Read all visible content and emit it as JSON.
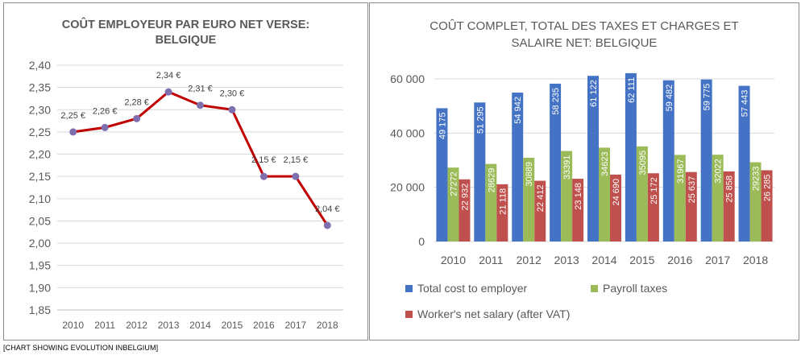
{
  "chart_data": [
    {
      "type": "line",
      "title": "COÛT EMPLOYEUR PAR EURO NET VERSE:\nBELGIQUE",
      "categories": [
        "2010",
        "2011",
        "2012",
        "2013",
        "2014",
        "2015",
        "2016",
        "2017",
        "2018"
      ],
      "values": [
        2.25,
        2.26,
        2.28,
        2.34,
        2.31,
        2.3,
        2.15,
        2.15,
        2.04
      ],
      "data_labels": [
        "2,25 €",
        "2,26 €",
        "2,28 €",
        "2,34 €",
        "2,31 €",
        "2,30 €",
        "2,15 €",
        "2,15 €",
        "2,04 €"
      ],
      "y_ticks": [
        "1,85",
        "1,90",
        "1,95",
        "2,00",
        "2,05",
        "2,10",
        "2,15",
        "2,20",
        "2,25",
        "2,30",
        "2,35",
        "2,40"
      ],
      "ylim": [
        1.85,
        2.4
      ],
      "grid": true,
      "line_color": "#c00000",
      "marker_color": "#7f6fae"
    },
    {
      "type": "bar",
      "title": "COÛT COMPLET, TOTAL DES TAXES ET CHARGES ET\nSALAIRE NET: BELGIQUE",
      "categories": [
        "2010",
        "2011",
        "2012",
        "2013",
        "2014",
        "2015",
        "2016",
        "2017",
        "2018"
      ],
      "y_ticks": [
        "0",
        "20 000",
        "40 000",
        "60 000"
      ],
      "ylim": [
        0,
        60000
      ],
      "grid": true,
      "legend_position": "bottom",
      "series": [
        {
          "name": "Total cost to employer",
          "color": "#4472c4",
          "values": [
            49175,
            51295,
            54942,
            58235,
            61122,
            62111,
            59482,
            59775,
            57443
          ],
          "labels": [
            "49 175",
            "51 295",
            "54 942",
            "58 235",
            "61 122",
            "62 111",
            "59 482",
            "59 775",
            "57 443"
          ]
        },
        {
          "name": "Payroll taxes",
          "color": "#9bbb59",
          "values": [
            27272,
            28629,
            30889,
            33391,
            34623,
            35095,
            31967,
            32022,
            29233
          ],
          "labels": [
            "27272",
            "28629",
            "30889",
            "33391",
            "34623",
            "35095",
            "31967",
            "32022",
            "29233"
          ]
        },
        {
          "name": "Worker's net salary (after VAT)",
          "color": "#c0504d",
          "values": [
            22932,
            21118,
            22412,
            23148,
            24690,
            25172,
            25637,
            25858,
            26285
          ],
          "labels": [
            "22 932",
            "21 118",
            "22 412",
            "23 148",
            "24 690",
            "25 172",
            "25 637",
            "25 858",
            "26 285"
          ]
        }
      ]
    }
  ],
  "caption": "[CHART SHOWING EVOLUTION INBELGIUM]"
}
